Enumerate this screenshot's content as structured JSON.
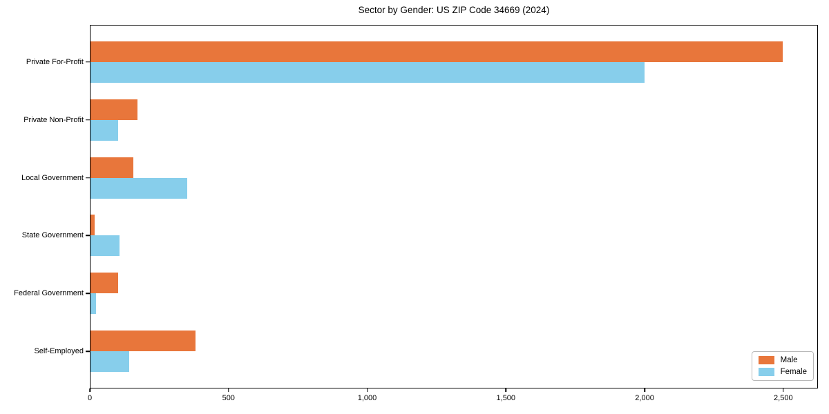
{
  "title": "Sector by Gender: US ZIP Code 34669 (2024)",
  "chart_data": {
    "type": "bar",
    "orientation": "horizontal",
    "title": "Sector by Gender: US ZIP Code 34669 (2024)",
    "categories": [
      "Private For-Profit",
      "Private Non-Profit",
      "Local Government",
      "State Government",
      "Federal Government",
      "Self-Employed"
    ],
    "series": [
      {
        "name": "Male",
        "color": "#E8763B",
        "values": [
          2500,
          170,
          155,
          15,
          100,
          380
        ]
      },
      {
        "name": "Female",
        "color": "#87CEEB",
        "values": [
          2000,
          100,
          350,
          105,
          20,
          140
        ]
      }
    ],
    "xlabel": "",
    "ylabel": "",
    "xlim": [
      0,
      2625
    ],
    "xtick_values": [
      0,
      500,
      1000,
      1500,
      2000,
      2500
    ],
    "xtick_labels": [
      "0",
      "500",
      "1,000",
      "1,500",
      "2,000",
      "2,500"
    ],
    "legend": {
      "position": "lower right",
      "entries": [
        "Male",
        "Female"
      ]
    },
    "grid": false,
    "background_color": "#FFFFFF",
    "axis_color": "#000000"
  }
}
